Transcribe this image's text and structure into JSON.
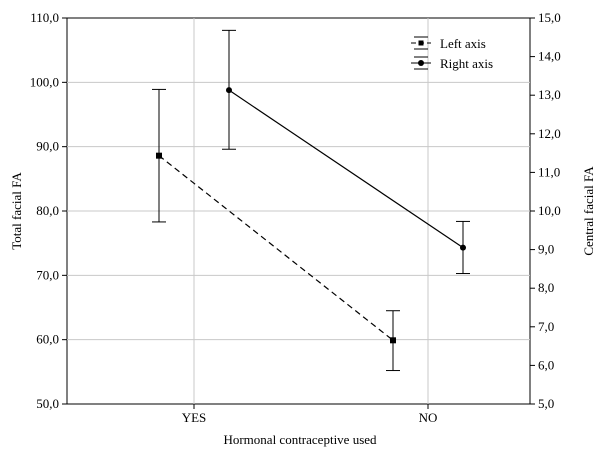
{
  "chart_data": {
    "type": "line",
    "categories": [
      "YES",
      "NO"
    ],
    "xlabel": "Hormonal contraceptive used",
    "ylabel_left": "Total facial FA",
    "ylabel_right": "Central facial FA",
    "ylim_left": [
      50,
      110
    ],
    "ylim_right": [
      5,
      15
    ],
    "yticks_left": [
      "50,0",
      "60,0",
      "70,0",
      "80,0",
      "90,0",
      "100,0",
      "110,0"
    ],
    "yticks_right": [
      "5,0",
      "6,0",
      "7,0",
      "8,0",
      "9,0",
      "10,0",
      "11,0",
      "12,0",
      "13,0",
      "14,0",
      "15,0"
    ],
    "grid": true,
    "legend_position": "top-right",
    "series": [
      {
        "name": "Left axis",
        "axis": "left",
        "line_style": "dashed",
        "marker": "square",
        "values": [
          88.6,
          59.9
        ],
        "error_low": [
          78.3,
          55.2
        ],
        "error_high": [
          98.9,
          64.5
        ]
      },
      {
        "name": "Right axis",
        "axis": "right",
        "line_style": "solid",
        "marker": "circle",
        "values": [
          13.13,
          9.05
        ],
        "error_low": [
          11.6,
          8.38
        ],
        "error_high": [
          14.68,
          9.73
        ]
      }
    ]
  }
}
